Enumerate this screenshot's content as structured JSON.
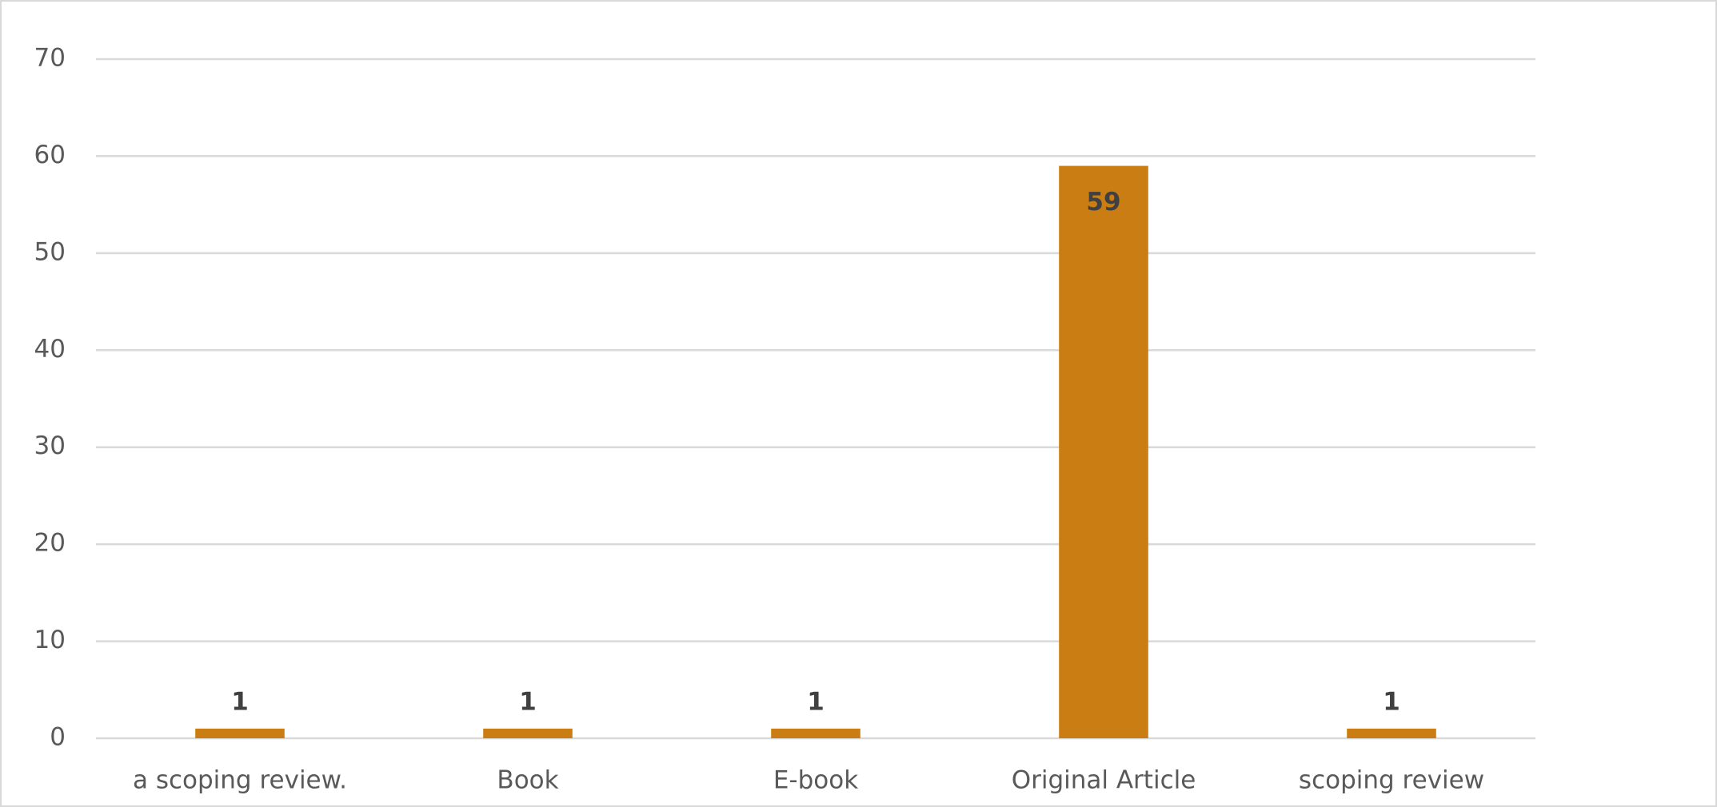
{
  "chart_data": {
    "type": "bar",
    "categories": [
      "a scoping review.",
      "Book",
      "E-book",
      "Original Article",
      "scoping review"
    ],
    "values": [
      1,
      1,
      1,
      59,
      1
    ],
    "color": "#c97d12",
    "ylim": [
      0,
      70
    ],
    "yticks": [
      0,
      10,
      20,
      30,
      40,
      50,
      60,
      70
    ],
    "grid": true
  }
}
